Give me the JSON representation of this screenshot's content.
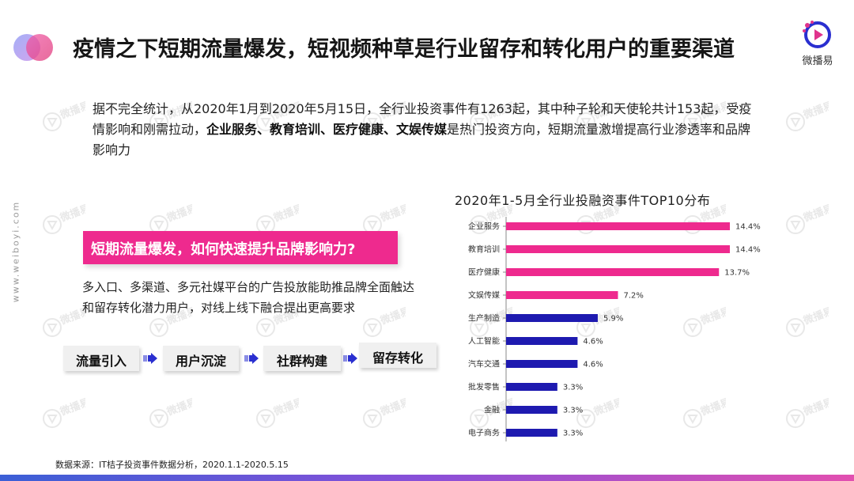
{
  "title": "疫情之下短期流量爆发，短视频种草是行业留存和转化用户的重要渠道",
  "brand": {
    "name": "微播易"
  },
  "side_url": "www.weiboyi.com",
  "watermark_text": "微播易",
  "intro": {
    "part1": "据不完全统计，从2020年1月到2020年5月15日，全行业投资事件有1263起，其中种子轮和天使轮共计153起，受疫情影响和刚需拉动，",
    "bold": "企业服务、教育培训、医疗健康、文娱传媒",
    "part2": "是热门投资方向，短期流量激增提高行业渗透率和品牌影响力"
  },
  "highlight": "短期流量爆发，如何快速提升品牌影响力?",
  "description": "多入口、多渠道、多元社媒平台的广告投放能助推品牌全面触达和留存转化潜力用户，对线上线下融合提出更高要求",
  "flow": [
    "流量引入",
    "用户沉淀",
    "社群构建",
    "留存转化"
  ],
  "source": "数据来源：IT桔子投资事件数据分析，2020.1.1-2020.5.15",
  "colors": {
    "pink": "#ee2a8e",
    "navy": "#1e1ab0",
    "accent_blue": "#2a2fd0"
  },
  "chart_data": {
    "type": "bar",
    "orientation": "horizontal",
    "title": "2020年1-5月全行业投融资事件TOP10分布",
    "categories": [
      "企业服务",
      "教育培训",
      "医疗健康",
      "文娱传媒",
      "生产制造",
      "人工智能",
      "汽车交通",
      "批发零售",
      "金融",
      "电子商务"
    ],
    "values": [
      14.4,
      14.4,
      13.7,
      7.2,
      5.9,
      4.6,
      4.6,
      3.3,
      3.3,
      3.3
    ],
    "value_labels": [
      "14.4%",
      "14.4%",
      "13.7%",
      "7.2%",
      "5.9%",
      "4.6%",
      "4.6%",
      "3.3%",
      "3.3%",
      "3.3%"
    ],
    "bar_colors": [
      "#ee2a8e",
      "#ee2a8e",
      "#ee2a8e",
      "#ee2a8e",
      "#1e1ab0",
      "#1e1ab0",
      "#1e1ab0",
      "#1e1ab0",
      "#1e1ab0",
      "#1e1ab0"
    ],
    "xlim": [
      0,
      14.4
    ],
    "grid": false,
    "legend": "none"
  }
}
